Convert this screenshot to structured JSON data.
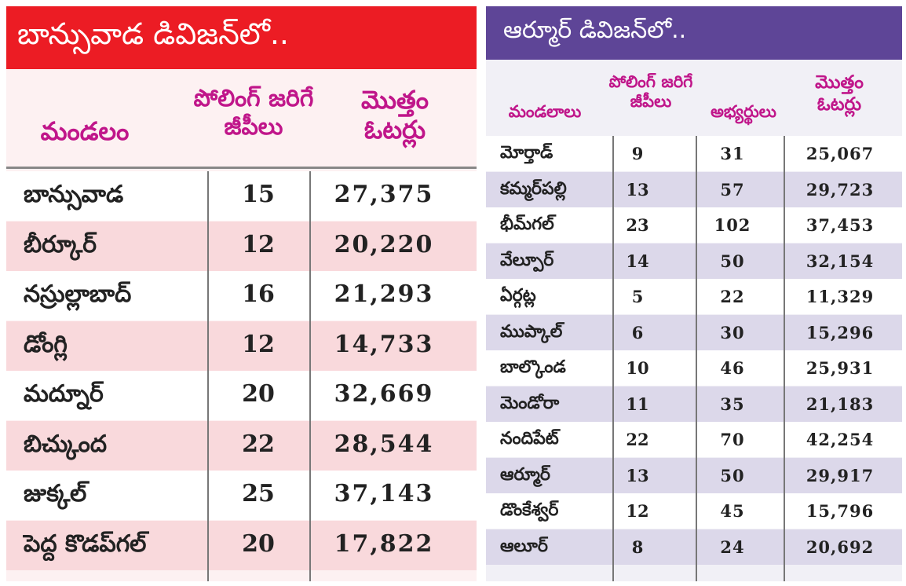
{
  "left": {
    "title": "బాన్సువాడ డివిజన్‌లో..",
    "headers": [
      "మండలం",
      "పోలింగ్ జరిగే జీపీలు",
      "మొత్తం ఓటర్లు"
    ],
    "rows": [
      [
        "బాన్సువాడ",
        "15",
        "27,375"
      ],
      [
        "బీర్కూర్",
        "12",
        "20,220"
      ],
      [
        "నస్రుల్లాబాద్",
        "16",
        "21,293"
      ],
      [
        "డోంగ్లి",
        "12",
        "14,733"
      ],
      [
        "మద్నూర్",
        "20",
        "32,669"
      ],
      [
        "బిచ్కుంద",
        "22",
        "28,544"
      ],
      [
        "జుక్కల్",
        "25",
        "37,143"
      ],
      [
        "పెద్ద కొడప్‌గల్",
        "20",
        "17,822"
      ]
    ]
  },
  "right": {
    "title": "ఆర్మూర్ డివిజన్‌లో..",
    "headers": [
      "మండలాలు",
      "పోలింగ్ జరిగే జీపీలు",
      "అభ్యర్థులు",
      "మొత్తం ఓటర్లు"
    ],
    "rows": [
      [
        "మోర్తాడ్",
        "9",
        "31",
        "25,067"
      ],
      [
        "కమ్మర్‌పల్లి",
        "13",
        "57",
        "29,723"
      ],
      [
        "భీమ్‌గల్",
        "23",
        "102",
        "37,453"
      ],
      [
        "వేల్పూర్",
        "14",
        "50",
        "32,154"
      ],
      [
        "ఏర్గట్ల",
        "5",
        "22",
        "11,329"
      ],
      [
        "ముప్కాల్",
        "6",
        "30",
        "15,296"
      ],
      [
        "బాల్కొండ",
        "10",
        "46",
        "25,931"
      ],
      [
        "మెండోరా",
        "11",
        "35",
        "21,183"
      ],
      [
        "నందిపేట్",
        "22",
        "70",
        "42,254"
      ],
      [
        "ఆర్మూర్",
        "13",
        "50",
        "29,917"
      ],
      [
        "డొంకేశ్వర్",
        "12",
        "45",
        "15,796"
      ],
      [
        "ఆలూర్",
        "8",
        "24",
        "20,692"
      ]
    ]
  },
  "colors": {
    "red": "#ec1c24",
    "purple": "#5e4597",
    "magenta": "#c0168a",
    "pink_row": "#f9d9dc",
    "lavender_row": "#dcd8ea"
  }
}
